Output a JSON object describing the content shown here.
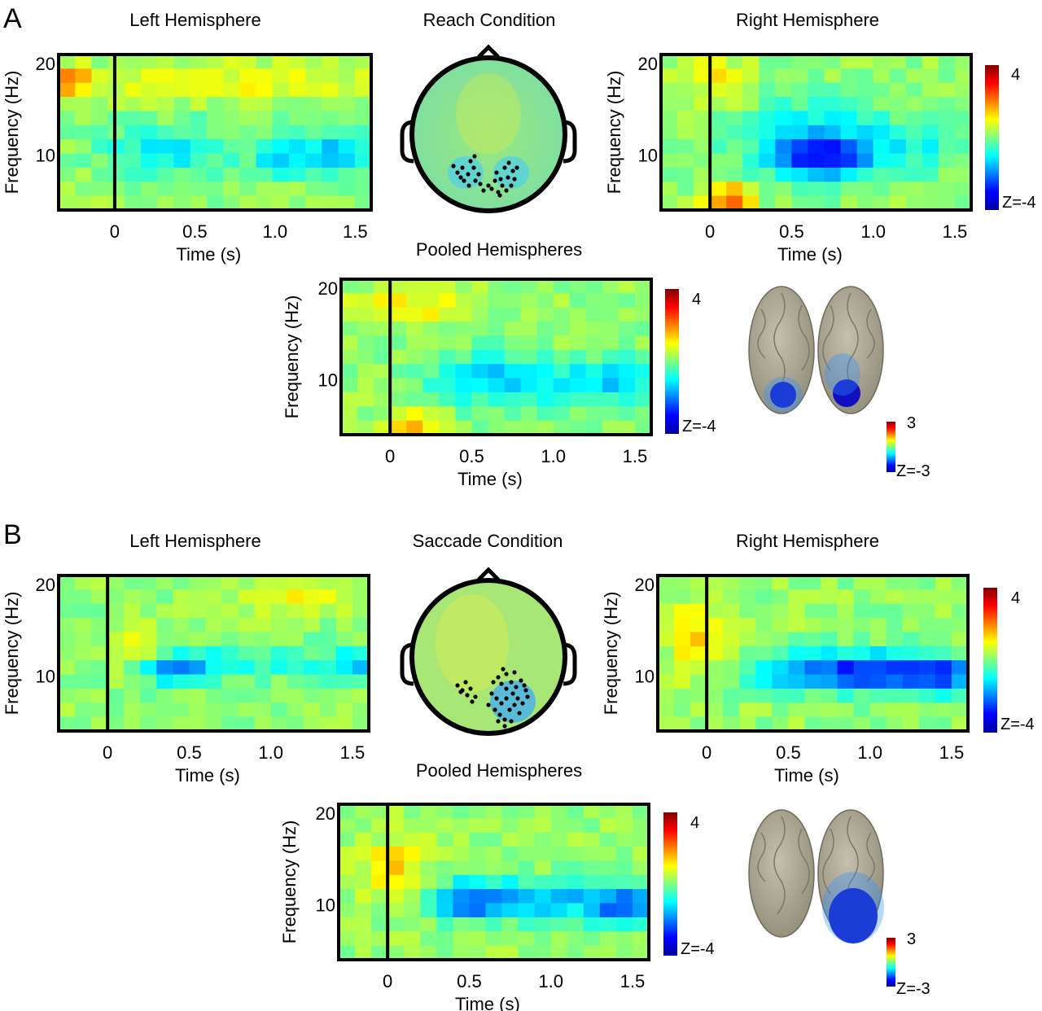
{
  "panels": {
    "A": {
      "letter": "A",
      "condition_title": "Reach Condition",
      "pooled_title": "Pooled Hemispheres"
    },
    "B": {
      "letter": "B",
      "condition_title": "Saccade Condition",
      "pooled_title": "Pooled Hemispheres"
    }
  },
  "colorbars": {
    "tf": {
      "max_label": "4",
      "min_label": "Z=-4"
    },
    "source": {
      "max_label": "3",
      "min_label": "Z=-3"
    }
  },
  "chart_data": [
    {
      "id": "A-left",
      "type": "heatmap",
      "title": "Left Hemisphere",
      "xlabel": "Time (s)",
      "ylabel": "Frequency (Hz)",
      "xlim": [
        -0.35,
        1.6
      ],
      "ylim": [
        4,
        21
      ],
      "xticks": [
        "0",
        "0.5",
        "1.0",
        "1.5"
      ],
      "yticks": [
        "10",
        "20"
      ],
      "event_line_x": 0,
      "zlim": [
        -4,
        4
      ],
      "features": [
        {
          "t": -0.3,
          "f": 18,
          "z": 2.2,
          "st": 0.1,
          "sf": 1.2
        },
        {
          "t": 0.7,
          "f": 18,
          "z": 0.8,
          "st": 0.6,
          "sf": 1.5
        },
        {
          "t": 0.35,
          "f": 10.5,
          "z": -1.2,
          "st": 0.3,
          "sf": 2
        },
        {
          "t": 1.05,
          "f": 10,
          "z": -1.5,
          "st": 0.12,
          "sf": 1.6
        },
        {
          "t": 1.4,
          "f": 10,
          "z": -1.9,
          "st": 0.15,
          "sf": 1.6
        }
      ]
    },
    {
      "id": "A-right",
      "type": "heatmap",
      "title": "Right Hemisphere",
      "xlabel": "Time (s)",
      "ylabel": "Frequency (Hz)",
      "xlim": [
        -0.3,
        1.6
      ],
      "ylim": [
        4,
        21
      ],
      "xticks": [
        "0",
        "0.5",
        "1.0",
        "1.5"
      ],
      "yticks": [
        "10",
        "20"
      ],
      "event_line_x": 0,
      "zlim": [
        -4,
        4
      ],
      "features": [
        {
          "t": 0.05,
          "f": 18,
          "z": 0.9,
          "st": 0.15,
          "sf": 2
        },
        {
          "t": 0.12,
          "f": 5,
          "z": 2.2,
          "st": 0.1,
          "sf": 1.2
        },
        {
          "t": 0.7,
          "f": 9.5,
          "z": -2.4,
          "st": 0.2,
          "sf": 1.6
        },
        {
          "t": 0.6,
          "f": 12,
          "z": -1.2,
          "st": 0.35,
          "sf": 3
        },
        {
          "t": 1.3,
          "f": 11,
          "z": -0.8,
          "st": 0.3,
          "sf": 2
        }
      ]
    },
    {
      "id": "A-pooled",
      "type": "heatmap",
      "title": "Pooled Hemispheres",
      "xlabel": "Time (s)",
      "ylabel": "Frequency (Hz)",
      "xlim": [
        -0.3,
        1.6
      ],
      "ylim": [
        4,
        21
      ],
      "xticks": [
        "0",
        "0.5",
        "1.0",
        "1.5"
      ],
      "yticks": [
        "10",
        "20"
      ],
      "event_line_x": 0,
      "zlim": [
        -4,
        4
      ],
      "features": [
        {
          "t": 0.1,
          "f": 18,
          "z": 0.9,
          "st": 0.25,
          "sf": 1.5
        },
        {
          "t": 0.15,
          "f": 5,
          "z": 1.4,
          "st": 0.12,
          "sf": 1.2
        },
        {
          "t": 0.7,
          "f": 10,
          "z": -1.7,
          "st": 0.3,
          "sf": 2
        },
        {
          "t": 1.4,
          "f": 10,
          "z": -1.6,
          "st": 0.18,
          "sf": 1.6
        }
      ]
    },
    {
      "id": "B-left",
      "type": "heatmap",
      "title": "Left Hemisphere",
      "xlabel": "Time (s)",
      "ylabel": "Frequency (Hz)",
      "xlim": [
        -0.3,
        1.6
      ],
      "ylim": [
        4,
        21
      ],
      "xticks": [
        "0",
        "0.5",
        "1.0",
        "1.5"
      ],
      "yticks": [
        "10",
        "20"
      ],
      "event_line_x": 0,
      "zlim": [
        -4,
        4
      ],
      "features": [
        {
          "t": 0.2,
          "f": 13,
          "z": 1.0,
          "st": 0.12,
          "sf": 1.5
        },
        {
          "t": 0.4,
          "f": 11,
          "z": -1.9,
          "st": 0.15,
          "sf": 1.3
        },
        {
          "t": 1.5,
          "f": 11,
          "z": -1.3,
          "st": 0.12,
          "sf": 1.3
        },
        {
          "t": 1.1,
          "f": 19,
          "z": 0.8,
          "st": 0.25,
          "sf": 1.5
        },
        {
          "t": 0.9,
          "f": 11.5,
          "z": -0.8,
          "st": 0.4,
          "sf": 1.5
        }
      ]
    },
    {
      "id": "B-right",
      "type": "heatmap",
      "title": "Right Hemisphere",
      "xlabel": "Time (s)",
      "ylabel": "Frequency (Hz)",
      "xlim": [
        -0.3,
        1.6
      ],
      "ylim": [
        4,
        21
      ],
      "xticks": [
        "0",
        "0.5",
        "1.0",
        "1.5"
      ],
      "yticks": [
        "10",
        "20"
      ],
      "event_line_x": 0,
      "zlim": [
        -4,
        4
      ],
      "features": [
        {
          "t": -0.05,
          "f": 14,
          "z": 1.2,
          "st": 0.12,
          "sf": 3
        },
        {
          "t": 0.7,
          "f": 10.5,
          "z": -2.0,
          "st": 0.35,
          "sf": 1.5
        },
        {
          "t": 1.45,
          "f": 10,
          "z": -2.2,
          "st": 0.15,
          "sf": 1.5
        },
        {
          "t": 1.1,
          "f": 10.5,
          "z": -1.6,
          "st": 0.25,
          "sf": 1.5
        }
      ]
    },
    {
      "id": "B-pooled",
      "type": "heatmap",
      "title": "Pooled Hemispheres",
      "xlabel": "Time (s)",
      "ylabel": "Frequency (Hz)",
      "xlim": [
        -0.3,
        1.6
      ],
      "ylim": [
        4,
        21
      ],
      "xticks": [
        "0",
        "0.5",
        "1.0",
        "1.5"
      ],
      "yticks": [
        "10",
        "20"
      ],
      "event_line_x": 0,
      "zlim": [
        -4,
        4
      ],
      "features": [
        {
          "t": 0.05,
          "f": 14,
          "z": 1.1,
          "st": 0.15,
          "sf": 2.5
        },
        {
          "t": 0.5,
          "f": 10.5,
          "z": -2.0,
          "st": 0.2,
          "sf": 1.5
        },
        {
          "t": 0.95,
          "f": 10.5,
          "z": -1.6,
          "st": 0.3,
          "sf": 1.5
        },
        {
          "t": 1.45,
          "f": 10,
          "z": -2.2,
          "st": 0.15,
          "sf": 1.5
        }
      ]
    }
  ]
}
